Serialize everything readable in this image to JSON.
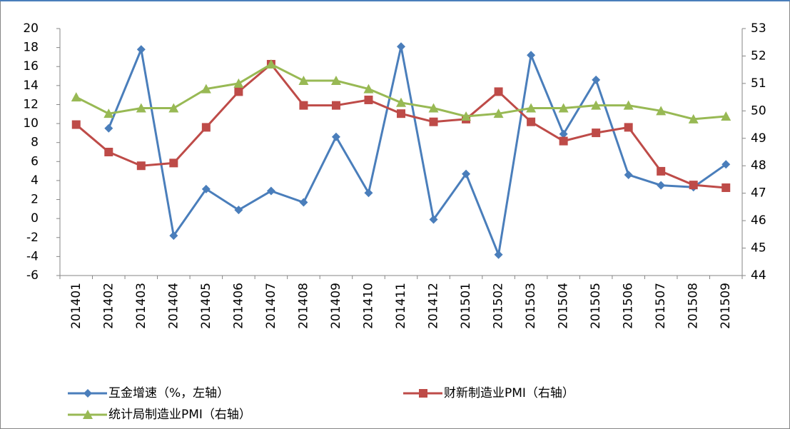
{
  "chart_data": {
    "type": "line",
    "categories": [
      "201401",
      "201402",
      "201403",
      "201404",
      "201405",
      "201406",
      "201407",
      "201408",
      "201409",
      "201410",
      "201411",
      "201412",
      "201501",
      "201502",
      "201503",
      "201504",
      "201505",
      "201506",
      "201507",
      "201508",
      "201509"
    ],
    "series": [
      {
        "name": "互金增速（%，左轴）",
        "color": "#4a7ebb",
        "marker": "diamond",
        "axis": "y",
        "values": [
          null,
          9.5,
          17.8,
          -1.8,
          3.1,
          0.9,
          2.9,
          1.7,
          8.6,
          2.7,
          18.1,
          -0.1,
          4.7,
          -3.8,
          17.2,
          8.9,
          14.6,
          4.6,
          3.5,
          3.3,
          5.7
        ]
      },
      {
        "name": "财新制造业PMI（右轴）",
        "color": "#be4b48",
        "marker": "square",
        "axis": "y2",
        "values": [
          49.5,
          48.5,
          48.0,
          48.1,
          49.4,
          50.7,
          51.7,
          50.2,
          50.2,
          50.4,
          49.9,
          49.6,
          49.7,
          50.7,
          49.6,
          48.9,
          49.2,
          49.4,
          47.8,
          47.3,
          47.2
        ]
      },
      {
        "name": "统计局制造业PMI（右轴）",
        "color": "#98b954",
        "marker": "triangle",
        "axis": "y2",
        "values": [
          50.5,
          49.9,
          50.1,
          50.1,
          50.8,
          51.0,
          51.7,
          51.1,
          51.1,
          50.8,
          50.3,
          50.1,
          49.8,
          49.9,
          50.1,
          50.1,
          50.2,
          50.2,
          50.0,
          49.7,
          49.8
        ]
      }
    ],
    "ylim": [
      -6,
      20
    ],
    "yticks": [
      -6,
      -4,
      -2,
      0,
      2,
      4,
      6,
      8,
      10,
      12,
      14,
      16,
      18,
      20
    ],
    "y2lim": [
      44,
      53
    ],
    "y2ticks": [
      44,
      45,
      46,
      47,
      48,
      49,
      50,
      51,
      52,
      53
    ],
    "grid": false
  }
}
